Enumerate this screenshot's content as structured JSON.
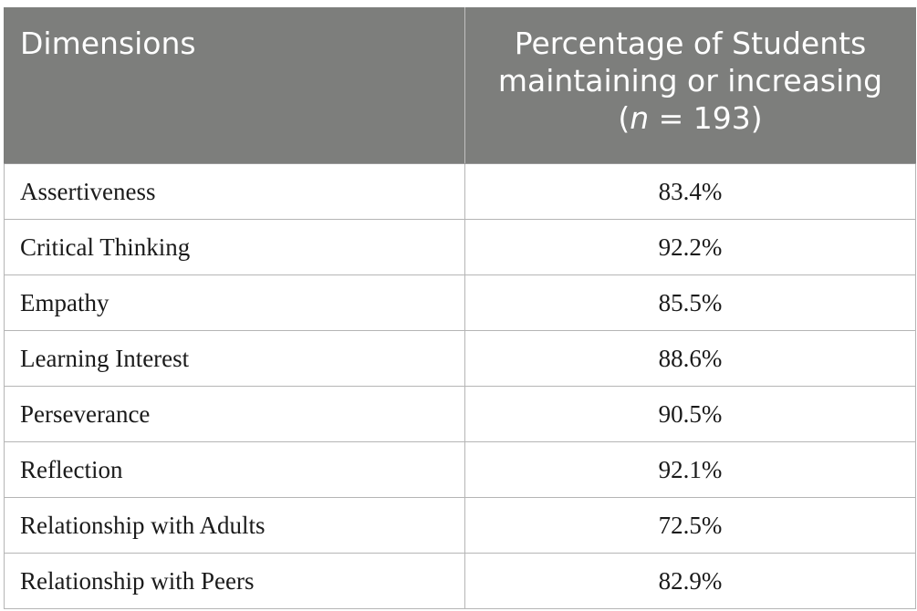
{
  "header": {
    "dimensions": "Dimensions",
    "percentage_line1": "Percentage of Students",
    "percentage_line2": "maintaining or increasing",
    "percentage_line3_open": "(",
    "percentage_line3_n": "n",
    "percentage_line3_rest": " = 193)"
  },
  "rows": [
    {
      "dimension": "Assertiveness",
      "percentage": "83.4%"
    },
    {
      "dimension": "Critical Thinking",
      "percentage": "92.2%"
    },
    {
      "dimension": "Empathy",
      "percentage": "85.5%"
    },
    {
      "dimension": "Learning Interest",
      "percentage": "88.6%"
    },
    {
      "dimension": "Perseverance",
      "percentage": "90.5%"
    },
    {
      "dimension": "Reflection",
      "percentage": "92.1%"
    },
    {
      "dimension": "Relationship with Adults",
      "percentage": "72.5%"
    },
    {
      "dimension": "Relationship with Peers",
      "percentage": "82.9%"
    }
  ],
  "colors": {
    "header_bg": "#7d7e7c",
    "header_text": "#ffffff",
    "border": "#b5b5b5"
  }
}
